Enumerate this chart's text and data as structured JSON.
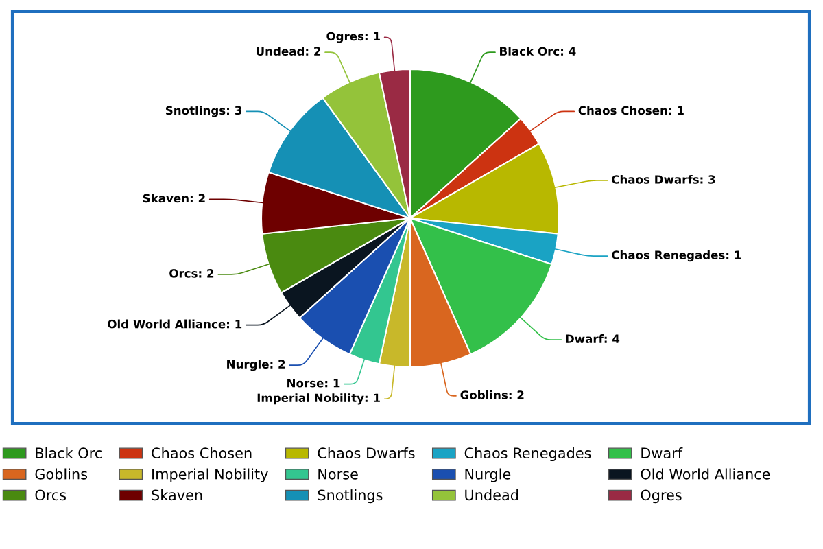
{
  "chart_data": {
    "type": "pie",
    "categories": [
      "Black Orc",
      "Chaos Chosen",
      "Chaos Dwarfs",
      "Chaos Renegades",
      "Dwarf",
      "Goblins",
      "Imperial Nobility",
      "Norse",
      "Nurgle",
      "Old World Alliance",
      "Orcs",
      "Skaven",
      "Snotlings",
      "Undead",
      "Ogres"
    ],
    "values": [
      4,
      1,
      3,
      1,
      4,
      2,
      1,
      1,
      2,
      1,
      2,
      2,
      3,
      2,
      1
    ],
    "value_labels": [
      "Black Orc: 4",
      "Chaos Chosen: 1",
      "Chaos Dwarfs: 3",
      "Chaos Renegades: 1",
      "Dwarf: 4",
      "Goblins: 2",
      "Imperial Nobility: 1",
      "Norse: 1",
      "Nurgle: 2",
      "Old World Alliance: 1",
      "Orcs: 2",
      "Skaven: 2",
      "Snotlings: 3",
      "Undead: 2",
      "Ogres: 1"
    ],
    "colors": [
      "#2e9a1e",
      "#cc3311",
      "#b8b800",
      "#1aa3c4",
      "#33c04a",
      "#d9661f",
      "#c8b82a",
      "#33c690",
      "#1a4fb0",
      "#0a1520",
      "#4a8a10",
      "#6e0000",
      "#1590b5",
      "#94c33a",
      "#9a2a44"
    ],
    "legend": "bottom"
  }
}
